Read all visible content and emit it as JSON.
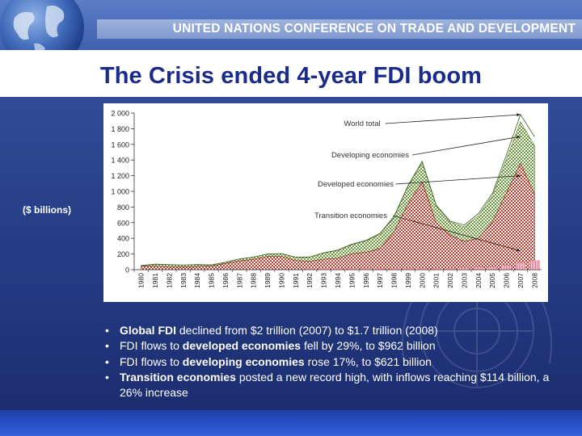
{
  "header": {
    "org_name": "UNITED NATIONS CONFERENCE ON TRADE AND DEVELOPMENT"
  },
  "slide": {
    "title": "The Crisis ended 4-year FDI boom",
    "unit_label": "($ billions)"
  },
  "bullets": [
    {
      "bold": "Global FDI",
      "rest": " declined from $2 trillion (2007) to $1.7 trillion (2008)",
      "pre": ""
    },
    {
      "pre": "FDI flows to ",
      "bold": "developed economies",
      "rest": " fell by 29%, to $962 billion"
    },
    {
      "pre": "FDI flows to ",
      "bold": "developing economies",
      "rest": " rose 17%, to $621 billion"
    },
    {
      "bold": "Transition economies",
      "rest": " posted a new record high, with inflows reaching $114 billion, a 26% increase",
      "pre": ""
    }
  ],
  "colors": {
    "developed": "#c0392b",
    "developing": "#6a9a3a",
    "transition": "#e27a8a",
    "title": "#1a2b8c"
  },
  "chart_data": {
    "type": "area",
    "stacked": true,
    "title": "",
    "xlabel": "",
    "ylabel": "",
    "ylim": [
      0,
      2000
    ],
    "y_ticks": [
      0,
      200,
      400,
      600,
      800,
      1000,
      1200,
      1400,
      1600,
      1800,
      2000
    ],
    "y_tick_labels": [
      "0",
      "200",
      "400",
      "600",
      "800",
      "1 000",
      "1 200",
      "1 400",
      "1 600",
      "1 800",
      "2 000"
    ],
    "grid": false,
    "x": [
      "1980",
      "1981",
      "1982",
      "1983",
      "1984",
      "1985",
      "1986",
      "1987",
      "1988",
      "1989",
      "1990",
      "1991",
      "1992",
      "1993",
      "1994",
      "1995",
      "1996",
      "1997",
      "1998",
      "1999",
      "2000",
      "2001",
      "2002",
      "2003",
      "2004",
      "2005",
      "2006",
      "2007",
      "2008"
    ],
    "series": [
      {
        "name": "Developed economies",
        "values": [
          47,
          44,
          38,
          37,
          41,
          47,
          79,
          111,
          132,
          170,
          170,
          116,
          107,
          134,
          145,
          204,
          221,
          271,
          483,
          843,
          1120,
          600,
          440,
          360,
          400,
          610,
          980,
          1360,
          962
        ]
      },
      {
        "name": "Developing economies",
        "values": [
          7,
          26,
          26,
          22,
          24,
          14,
          16,
          26,
          29,
          29,
          35,
          42,
          54,
          78,
          102,
          116,
          147,
          183,
          192,
          225,
          256,
          214,
          167,
          186,
          287,
          333,
          433,
          529,
          621
        ]
      },
      {
        "name": "Transition economies",
        "values": [
          0,
          0,
          0,
          0,
          0,
          0,
          0,
          0,
          0,
          0,
          0,
          0,
          1,
          3,
          4,
          6,
          6,
          9,
          7,
          8,
          7,
          8,
          11,
          24,
          30,
          31,
          55,
          91,
          114
        ]
      }
    ],
    "annotations": [
      {
        "text": "World total",
        "target_year": "2007",
        "target_value": 1980
      },
      {
        "text": "Developing economies",
        "target_year": "2007",
        "target_value": 1700
      },
      {
        "text": "Developed economies",
        "target_year": "2007",
        "target_value": 1200
      },
      {
        "text": "Transition economies",
        "target_year": "2007",
        "target_value": 240
      }
    ]
  }
}
